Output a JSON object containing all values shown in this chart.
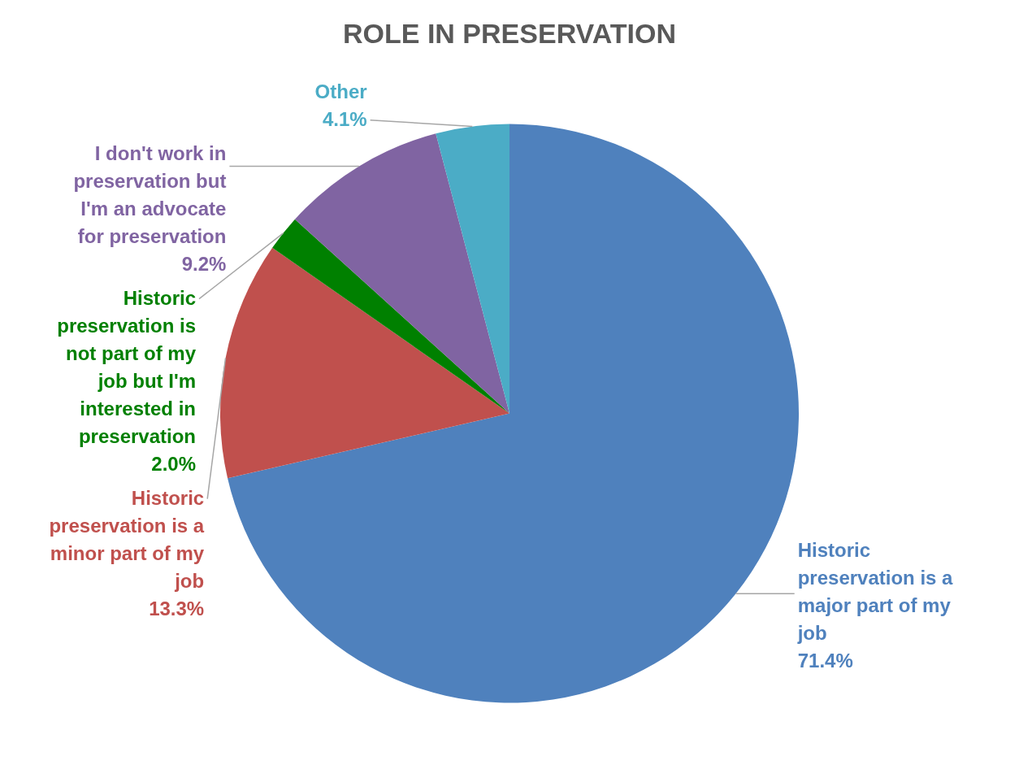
{
  "chart_data": {
    "type": "pie",
    "title": "ROLE IN PRESERVATION",
    "categories": [
      "Historic preservation is a major part of my job",
      "Historic preservation is a minor part of my job",
      "Historic preservation is not part of my job but I'm interested in preservation",
      "I don't work in preservation but I'm an advocate for preservation",
      "Other"
    ],
    "values": [
      71.4,
      13.3,
      2.0,
      9.2,
      4.1
    ],
    "value_labels": [
      "71.4%",
      "13.3%",
      "2.0%",
      "9.2%",
      "4.1%"
    ],
    "colors": [
      "#4f81bd",
      "#c0504d",
      "#008000",
      "#8064a2",
      "#4bacc6"
    ]
  }
}
